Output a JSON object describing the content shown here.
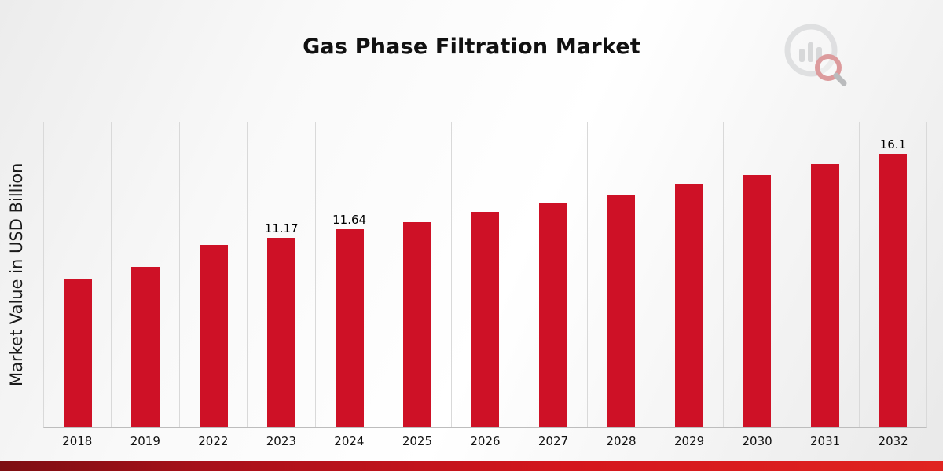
{
  "chart_data": {
    "type": "bar",
    "title": "Gas Phase Filtration Market",
    "xlabel": "",
    "ylabel": "Market Value in USD Billion",
    "categories": [
      "2018",
      "2019",
      "2022",
      "2023",
      "2024",
      "2025",
      "2026",
      "2027",
      "2028",
      "2029",
      "2030",
      "2031",
      "2032"
    ],
    "values": [
      8.7,
      9.43,
      10.72,
      11.17,
      11.64,
      12.1,
      12.66,
      13.2,
      13.71,
      14.3,
      14.86,
      15.5,
      16.1
    ],
    "data_labels": [
      "",
      "",
      "",
      "11.17",
      "11.64",
      "",
      "",
      "",
      "",
      "",
      "",
      "",
      "16.1"
    ],
    "ylim": [
      0,
      18
    ],
    "bar_color": "#ce1126",
    "grid": "vertical-gridlines",
    "legend": "none",
    "accent_strip_colors": [
      "#7d0e12",
      "#e02420"
    ]
  },
  "branding": {
    "logo_icon": "market-research-bar-chart-magnifier-logo"
  }
}
